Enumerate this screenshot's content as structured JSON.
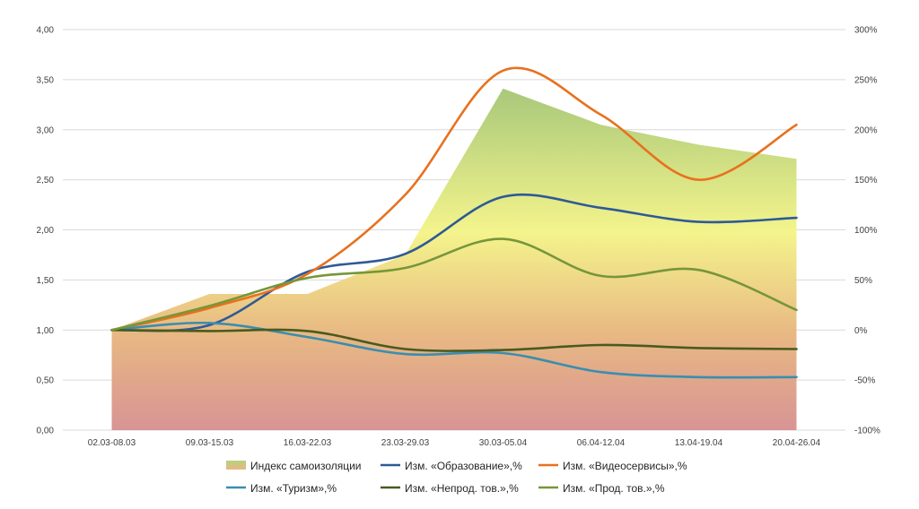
{
  "chart_data": {
    "type": "line",
    "categories": [
      "02.03-08.03",
      "09.03-15.03",
      "16.03-22.03",
      "23.03-29.03",
      "30.03-05.04",
      "06.04-12.04",
      "13.04-19.04",
      "20.04-26.04"
    ],
    "left_axis": {
      "ylim": [
        0,
        4
      ],
      "ticks": [
        "0,00",
        "0,50",
        "1,00",
        "1,50",
        "2,00",
        "2,50",
        "3,00",
        "3,50",
        "4,00"
      ]
    },
    "right_axis": {
      "ylim": [
        -100,
        300
      ],
      "ticks": [
        "-100%",
        "-50%",
        "0%",
        "50%",
        "100%",
        "150%",
        "200%",
        "250%",
        "300%"
      ]
    },
    "grid": true,
    "legend_position": "bottom",
    "area_series": {
      "name": "Индекс самоизоляции",
      "axis": "left",
      "values": [
        1.0,
        1.36,
        1.36,
        1.75,
        3.41,
        3.05,
        2.85,
        2.71
      ],
      "gradient_colors": [
        "#a8c87a",
        "#f4f48c",
        "#e8b883",
        "#d89494"
      ]
    },
    "series": [
      {
        "name": "Изм. «Образование»,%",
        "axis": "right",
        "color": "#2e5a96",
        "values": [
          0,
          5,
          58,
          76,
          133,
          122,
          108,
          112
        ]
      },
      {
        "name": "Изм. «Видеосервисы»,%",
        "axis": "right",
        "color": "#e8711e",
        "values": [
          0,
          22,
          56,
          135,
          259,
          215,
          150,
          205
        ]
      },
      {
        "name": "Изм. «Туризм»,%",
        "axis": "right",
        "color": "#3a8db0",
        "values": [
          0,
          7,
          -7,
          -24,
          -23,
          -42,
          -47,
          -47
        ]
      },
      {
        "name": "Изм. «Непрод. тов.»,%",
        "axis": "right",
        "color": "#4a5a1e",
        "values": [
          0,
          -1,
          -1,
          -19,
          -20,
          -15,
          -18,
          -19
        ]
      },
      {
        "name": "Изм. «Прод. тов.»,%",
        "axis": "right",
        "color": "#76963a",
        "values": [
          0,
          24,
          52,
          62,
          91,
          54,
          60,
          20
        ]
      }
    ]
  }
}
